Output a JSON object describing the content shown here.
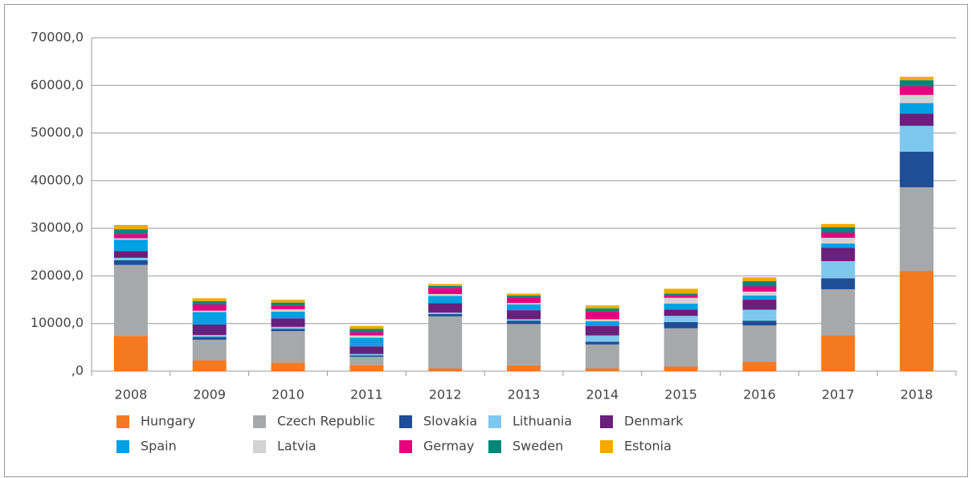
{
  "chart_data": {
    "type": "stacked_bar",
    "categories": [
      "2008",
      "2009",
      "2010",
      "2011",
      "2012",
      "2013",
      "2014",
      "2015",
      "2016",
      "2017",
      "2018"
    ],
    "series": [
      {
        "name": "Hungary",
        "color": "#f47920",
        "values": [
          7400,
          2300,
          1800,
          1300,
          600,
          1200,
          600,
          1000,
          2000,
          7500,
          21000
        ]
      },
      {
        "name": "Czech Republic",
        "color": "#a7a8aa",
        "values": [
          14900,
          4300,
          6600,
          1700,
          10900,
          8700,
          5000,
          8000,
          7600,
          9700,
          17600
        ]
      },
      {
        "name": "Slovakia",
        "color": "#1f4e96",
        "values": [
          1000,
          600,
          500,
          300,
          500,
          700,
          600,
          1300,
          1000,
          2300,
          7500
        ]
      },
      {
        "name": "Lithuania",
        "color": "#7ec8ef",
        "values": [
          500,
          400,
          400,
          300,
          300,
          300,
          1300,
          1300,
          2300,
          3600,
          5400
        ]
      },
      {
        "name": "Denmark",
        "color": "#6a1f7a",
        "values": [
          1400,
          2200,
          1800,
          1600,
          2000,
          1900,
          2000,
          1300,
          2100,
          2800,
          2600
        ]
      },
      {
        "name": "Spain",
        "color": "#00a0e3",
        "values": [
          2400,
          2600,
          1400,
          1800,
          1500,
          1200,
          1000,
          1300,
          900,
          900,
          2200
        ]
      },
      {
        "name": "Latvia",
        "color": "#d3d3d3",
        "values": [
          300,
          300,
          500,
          500,
          400,
          300,
          400,
          1200,
          800,
          1200,
          1700
        ]
      },
      {
        "name": "Germay",
        "color": "#e6007e",
        "values": [
          900,
          1300,
          800,
          700,
          1300,
          1200,
          1600,
          600,
          1100,
          1100,
          1800
        ]
      },
      {
        "name": "Sweden",
        "color": "#00877a",
        "values": [
          1000,
          700,
          600,
          700,
          400,
          400,
          700,
          300,
          1100,
          1100,
          1300
        ]
      },
      {
        "name": "Estonia",
        "color": "#f7a800",
        "values": [
          900,
          600,
          600,
          600,
          400,
          400,
          600,
          1000,
          800,
          700,
          700
        ]
      }
    ],
    "ylim": [
      0,
      70000
    ],
    "yticks": [
      {
        "value": 0,
        "label": ",0"
      },
      {
        "value": 10000,
        "label": "10000,0"
      },
      {
        "value": 20000,
        "label": "20000,0"
      },
      {
        "value": 30000,
        "label": "30000,0"
      },
      {
        "value": 40000,
        "label": "40000,0"
      },
      {
        "value": 50000,
        "label": "50000,0"
      },
      {
        "value": 60000,
        "label": "60000,0"
      },
      {
        "value": 70000,
        "label": "70000,0"
      }
    ],
    "grid": true,
    "legend": "bottom"
  }
}
